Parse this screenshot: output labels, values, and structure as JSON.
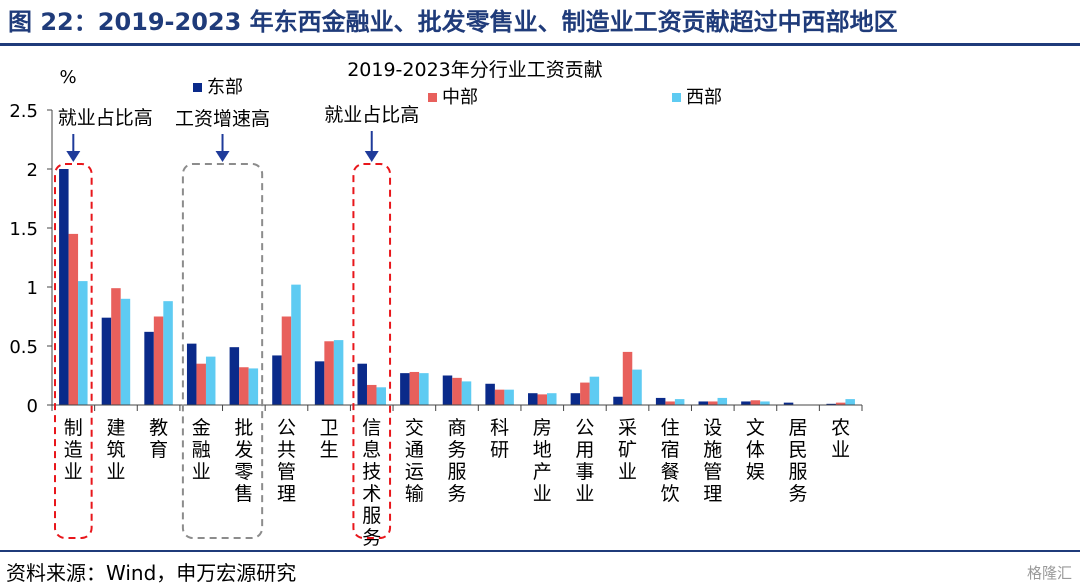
{
  "figure_title": "图 22：2019-2023 年东西金融业、批发零售业、制造业工资贡献超过中西部地区",
  "source_note": "资料来源：Wind，申万宏源研究",
  "watermark": "格隆汇",
  "colors": {
    "east": "#0a2a8a",
    "central": "#e8605c",
    "west": "#5ecbf2",
    "title": "#1f3b7a",
    "red_box": "#e8161b",
    "gray_box": "#8c8c8c"
  },
  "chart_data": {
    "type": "bar",
    "title": "2019-2023年分行业工资贡献",
    "ylabel": "%",
    "ylim": [
      0,
      2.5
    ],
    "yticks": [
      "0",
      "0.5",
      "1",
      "1.5",
      "2",
      "2.5"
    ],
    "legend_position": "top",
    "categories": [
      "制造业",
      "建筑业",
      "教育",
      "金融业",
      "批发零售",
      "公共管理",
      "卫生",
      "信息技术服务",
      "交通运输",
      "商务服务",
      "科研",
      "房地产业",
      "公用事业",
      "采矿业",
      "住宿餐饮",
      "设施管理",
      "文体娱",
      "居民服务",
      "农业"
    ],
    "series": [
      {
        "name": "东部",
        "values": [
          2.0,
          0.74,
          0.62,
          0.52,
          0.49,
          0.42,
          0.37,
          0.35,
          0.27,
          0.25,
          0.18,
          0.1,
          0.1,
          0.07,
          0.06,
          0.03,
          0.03,
          0.02,
          0.01
        ]
      },
      {
        "name": "中部",
        "values": [
          1.45,
          0.99,
          0.75,
          0.35,
          0.32,
          0.75,
          0.54,
          0.17,
          0.28,
          0.23,
          0.13,
          0.09,
          0.19,
          0.45,
          0.03,
          0.03,
          0.04,
          0.0,
          0.02
        ]
      },
      {
        "name": "西部",
        "values": [
          1.05,
          0.9,
          0.88,
          0.41,
          0.31,
          1.02,
          0.55,
          0.15,
          0.27,
          0.2,
          0.13,
          0.1,
          0.24,
          0.3,
          0.05,
          0.06,
          0.03,
          0.0,
          0.05
        ]
      }
    ],
    "annotations": [
      {
        "text": "就业占比高",
        "categories": [
          "制造业"
        ],
        "style": "red-dashed"
      },
      {
        "text": "工资增速高",
        "categories": [
          "金融业",
          "批发零售"
        ],
        "style": "gray-dashed"
      },
      {
        "text": "就业占比高",
        "categories": [
          "信息技术服务"
        ],
        "style": "red-dashed"
      }
    ]
  }
}
